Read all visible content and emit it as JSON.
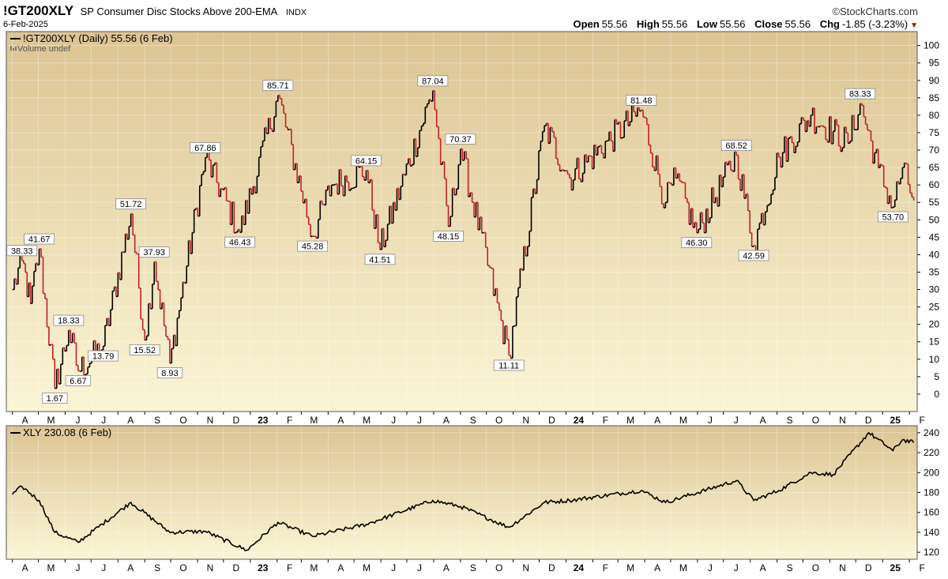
{
  "header": {
    "symbol": "!GT200XLY",
    "description": "SP Consumer Disc Stocks Above 200-EMA",
    "exchange": "INDX",
    "brand": "©StockCharts.com",
    "date": "6-Feb-2025",
    "open_label": "Open",
    "open": "55.56",
    "high_label": "High",
    "high": "55.56",
    "low_label": "Low",
    "low": "55.56",
    "close_label": "Close",
    "close": "55.56",
    "chg_label": "Chg",
    "chg": "-1.85 (-3.23%)"
  },
  "chart_data": [
    {
      "type": "line",
      "title": "!GT200XLY (Daily) 55.56 (6 Feb)",
      "subtitle": "Volume undef",
      "ylim": [
        -5,
        104
      ],
      "y_ticks": [
        0,
        5,
        10,
        15,
        20,
        25,
        30,
        35,
        40,
        45,
        50,
        55,
        60,
        65,
        70,
        75,
        80,
        85,
        90,
        95,
        100
      ],
      "x_ticks": [
        "A",
        "M",
        "J",
        "J",
        "A",
        "S",
        "O",
        "N",
        "D",
        "23",
        "F",
        "M",
        "A",
        "M",
        "J",
        "J",
        "A",
        "S",
        "O",
        "N",
        "D",
        "24",
        "F",
        "M",
        "A",
        "M",
        "J",
        "J",
        "A",
        "S",
        "O",
        "N",
        "D",
        "25",
        "F"
      ],
      "grid": true,
      "colors": {
        "up": "#000000",
        "down": "#c0202a",
        "background_top": "#dcc493",
        "background_bottom": "#fbf5d5"
      },
      "points": [
        {
          "x": "2022-04-01",
          "y": 30
        },
        {
          "x": "2022-04-12",
          "y": 38.33
        },
        {
          "x": "2022-04-22",
          "y": 26
        },
        {
          "x": "2022-05-02",
          "y": 41.67
        },
        {
          "x": "2022-05-20",
          "y": 1.67
        },
        {
          "x": "2022-06-05",
          "y": 18.33
        },
        {
          "x": "2022-06-16",
          "y": 6.67
        },
        {
          "x": "2022-07-15",
          "y": 13.79
        },
        {
          "x": "2022-08-16",
          "y": 51.72
        },
        {
          "x": "2022-09-01",
          "y": 15.52
        },
        {
          "x": "2022-09-12",
          "y": 37.93
        },
        {
          "x": "2022-09-30",
          "y": 8.93
        },
        {
          "x": "2022-11-10",
          "y": 67.86
        },
        {
          "x": "2022-12-20",
          "y": 46.43
        },
        {
          "x": "2023-02-02",
          "y": 85.71
        },
        {
          "x": "2023-03-14",
          "y": 45.28
        },
        {
          "x": "2023-04-05",
          "y": 60
        },
        {
          "x": "2023-05-15",
          "y": 64.15
        },
        {
          "x": "2023-05-31",
          "y": 41.51
        },
        {
          "x": "2023-07-31",
          "y": 87.04
        },
        {
          "x": "2023-08-18",
          "y": 48.15
        },
        {
          "x": "2023-09-01",
          "y": 70.37
        },
        {
          "x": "2023-10-27",
          "y": 11.11
        },
        {
          "x": "2023-12-07",
          "y": 77
        },
        {
          "x": "2024-01-05",
          "y": 62
        },
        {
          "x": "2024-03-28",
          "y": 81.48
        },
        {
          "x": "2024-04-25",
          "y": 55
        },
        {
          "x": "2024-05-07",
          "y": 62
        },
        {
          "x": "2024-05-31",
          "y": 46.3
        },
        {
          "x": "2024-07-16",
          "y": 68.52
        },
        {
          "x": "2024-08-05",
          "y": 42.59
        },
        {
          "x": "2024-09-03",
          "y": 68
        },
        {
          "x": "2024-10-10",
          "y": 80
        },
        {
          "x": "2024-11-22",
          "y": 72
        },
        {
          "x": "2024-12-06",
          "y": 83.33
        },
        {
          "x": "2024-12-27",
          "y": 65
        },
        {
          "x": "2025-01-13",
          "y": 53.7
        },
        {
          "x": "2025-01-24",
          "y": 65
        },
        {
          "x": "2025-02-06",
          "y": 55.56
        }
      ],
      "annotations": [
        {
          "x": "2022-04-12",
          "y": 38.33,
          "label": "38.33",
          "side": "above"
        },
        {
          "x": "2022-05-02",
          "y": 41.67,
          "label": "41.67",
          "side": "above"
        },
        {
          "x": "2022-05-20",
          "y": 1.67,
          "label": "1.67",
          "side": "below"
        },
        {
          "x": "2022-06-05",
          "y": 18.33,
          "label": "18.33",
          "side": "above"
        },
        {
          "x": "2022-06-16",
          "y": 6.67,
          "label": "6.67",
          "side": "below"
        },
        {
          "x": "2022-07-15",
          "y": 13.79,
          "label": "13.79",
          "side": "below"
        },
        {
          "x": "2022-08-16",
          "y": 51.72,
          "label": "51.72",
          "side": "above"
        },
        {
          "x": "2022-09-01",
          "y": 15.52,
          "label": "15.52",
          "side": "below"
        },
        {
          "x": "2022-09-12",
          "y": 37.93,
          "label": "37.93",
          "side": "above"
        },
        {
          "x": "2022-09-30",
          "y": 8.93,
          "label": "8.93",
          "side": "below"
        },
        {
          "x": "2022-11-10",
          "y": 67.86,
          "label": "67.86",
          "side": "above"
        },
        {
          "x": "2022-12-20",
          "y": 46.43,
          "label": "46.43",
          "side": "below"
        },
        {
          "x": "2023-02-02",
          "y": 85.71,
          "label": "85.71",
          "side": "above"
        },
        {
          "x": "2023-03-14",
          "y": 45.28,
          "label": "45.28",
          "side": "below"
        },
        {
          "x": "2023-05-15",
          "y": 64.15,
          "label": "64.15",
          "side": "above"
        },
        {
          "x": "2023-05-31",
          "y": 41.51,
          "label": "41.51",
          "side": "below"
        },
        {
          "x": "2023-07-31",
          "y": 87.04,
          "label": "87.04",
          "side": "above"
        },
        {
          "x": "2023-08-18",
          "y": 48.15,
          "label": "48.15",
          "side": "below"
        },
        {
          "x": "2023-09-01",
          "y": 70.37,
          "label": "70.37",
          "side": "above"
        },
        {
          "x": "2023-10-27",
          "y": 11.11,
          "label": "11.11",
          "side": "below"
        },
        {
          "x": "2024-03-28",
          "y": 81.48,
          "label": "81.48",
          "side": "above"
        },
        {
          "x": "2024-05-31",
          "y": 46.3,
          "label": "46.30",
          "side": "below"
        },
        {
          "x": "2024-07-16",
          "y": 68.52,
          "label": "68.52",
          "side": "above"
        },
        {
          "x": "2024-08-05",
          "y": 42.59,
          "label": "42.59",
          "side": "below"
        },
        {
          "x": "2024-12-06",
          "y": 83.33,
          "label": "83.33",
          "side": "above"
        },
        {
          "x": "2025-01-13",
          "y": 53.7,
          "label": "53.70",
          "side": "below"
        }
      ]
    },
    {
      "type": "line",
      "title": "XLY 230.08 (6 Feb)",
      "ylim": [
        113,
        247
      ],
      "y_ticks": [
        120,
        140,
        160,
        180,
        200,
        220,
        240
      ],
      "x_ticks": [
        "A",
        "M",
        "J",
        "J",
        "A",
        "S",
        "O",
        "N",
        "D",
        "23",
        "F",
        "M",
        "A",
        "M",
        "J",
        "J",
        "A",
        "S",
        "O",
        "N",
        "D",
        "24",
        "F",
        "M",
        "A",
        "M",
        "J",
        "J",
        "A",
        "S",
        "O",
        "N",
        "D",
        "25",
        "F"
      ],
      "grid": true,
      "colors": {
        "line": "#000000",
        "background_top": "#dcc493",
        "background_bottom": "#fbf5d5"
      },
      "points": [
        {
          "x": "2022-04-01",
          "y": 178
        },
        {
          "x": "2022-04-12",
          "y": 186
        },
        {
          "x": "2022-05-02",
          "y": 172
        },
        {
          "x": "2022-05-20",
          "y": 140
        },
        {
          "x": "2022-06-16",
          "y": 130
        },
        {
          "x": "2022-08-16",
          "y": 170
        },
        {
          "x": "2022-09-30",
          "y": 140
        },
        {
          "x": "2022-11-10",
          "y": 141
        },
        {
          "x": "2022-12-28",
          "y": 122
        },
        {
          "x": "2023-02-02",
          "y": 150
        },
        {
          "x": "2023-03-14",
          "y": 136
        },
        {
          "x": "2023-05-15",
          "y": 148
        },
        {
          "x": "2023-07-31",
          "y": 172
        },
        {
          "x": "2023-09-01",
          "y": 166
        },
        {
          "x": "2023-10-27",
          "y": 145
        },
        {
          "x": "2023-12-07",
          "y": 170
        },
        {
          "x": "2024-01-05",
          "y": 172
        },
        {
          "x": "2024-03-28",
          "y": 182
        },
        {
          "x": "2024-04-25",
          "y": 170
        },
        {
          "x": "2024-07-16",
          "y": 192
        },
        {
          "x": "2024-08-05",
          "y": 172
        },
        {
          "x": "2024-09-03",
          "y": 182
        },
        {
          "x": "2024-10-10",
          "y": 200
        },
        {
          "x": "2024-11-05",
          "y": 198
        },
        {
          "x": "2024-12-16",
          "y": 240
        },
        {
          "x": "2025-01-13",
          "y": 222
        },
        {
          "x": "2025-01-24",
          "y": 233
        },
        {
          "x": "2025-02-06",
          "y": 230.08
        }
      ]
    }
  ]
}
